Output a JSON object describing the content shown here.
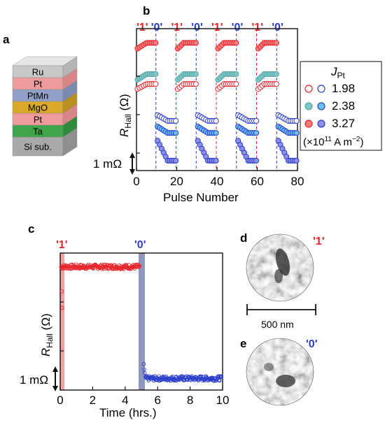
{
  "panels": {
    "a": {
      "label": "a",
      "stack": [
        {
          "name": "Ru",
          "top": "#e6e6e6",
          "front": "#c8c8c8",
          "side": "#b5b5b5"
        },
        {
          "name": "Pt",
          "top": "#f6b5b5",
          "front": "#f09b9b",
          "side": "#d98585"
        },
        {
          "name": "PtMn",
          "top": "#a9b7d6",
          "front": "#90a0c6",
          "side": "#7a8ab0"
        },
        {
          "name": "MgO",
          "top": "#e6c04a",
          "front": "#d9a92a",
          "side": "#b98f20"
        },
        {
          "name": "Pt",
          "top": "#f6b5b5",
          "front": "#f09b9b",
          "side": "#d98585"
        },
        {
          "name": "Ta",
          "top": "#5cbd5c",
          "front": "#3fa54a",
          "side": "#2f8a3a"
        },
        {
          "name": "Si sub.",
          "top": "#c4c4c4",
          "front": "#a9a9a9",
          "side": "#8f8f8f"
        }
      ]
    },
    "b": {
      "label": "b",
      "ylabel_main": "R",
      "ylabel_sub": "Hall",
      "ylabel_unit": " (Ω)",
      "xlabel": "Pulse Number",
      "scalebar": "1 mΩ",
      "states_top": [
        "'1'",
        "'0'",
        "'1'",
        "'0'",
        "'1'",
        "'0'",
        "'1'",
        "'0'"
      ],
      "legend": {
        "title_main": "J",
        "title_sub": "Pt",
        "entries": [
          "1.98",
          "2.38",
          "3.27"
        ],
        "units": "(×10",
        "units_exp": "11",
        "units_tail": " A m",
        "units_exp2": "−2",
        "units_close": ")"
      }
    },
    "c": {
      "label": "c",
      "ylabel_main": "R",
      "ylabel_sub": "Hall",
      "ylabel_unit": " (Ω)",
      "xlabel": "Time (hrs.)",
      "scalebar": "1 mΩ",
      "state_1": "'1'",
      "state_0": "'0'"
    },
    "d": {
      "label": "d",
      "state": "'1'"
    },
    "scalebar_500": "500 nm",
    "e": {
      "label": "e",
      "state": "'0'"
    }
  },
  "chart_data": [
    {
      "type": "scatter",
      "panel": "b",
      "xlabel": "Pulse Number",
      "ylabel": "R_Hall (Ω)",
      "xlim": [
        0,
        80
      ],
      "xticks": [
        0,
        20,
        40,
        60,
        80
      ],
      "ylim": [
        0,
        10
      ],
      "pulses_per_segment": 10,
      "segment_starts": [
        0,
        10,
        20,
        30,
        40,
        50,
        60,
        70
      ],
      "segment_states": [
        "1",
        "0",
        "1",
        "0",
        "1",
        "0",
        "1",
        "0"
      ],
      "scalebar_mOhm": 1,
      "series": [
        {
          "name": "1.98",
          "color_edge": "#e8242b",
          "color_edge0": "#2a3ecb",
          "fill": "#ffffff",
          "high": 6.1,
          "low_start": 3.9,
          "low_end": 3.5,
          "high_start": 5.75
        },
        {
          "name": "2.38",
          "color_edge": "#5aa6a6",
          "color_edge0": "#2a3ecb",
          "fill1": "#7fc8c8",
          "fill0": "#6cc0ee",
          "high": 6.8,
          "low_start": 3.1,
          "low_end": 2.65,
          "high_start": 6.4
        },
        {
          "name": "3.27",
          "color_edge": "#e8242b",
          "color_edge0": "#2a3ecb",
          "fill1": "#f08080",
          "fill0": "#8f8fe8",
          "high": 9.0,
          "low_start": 2.1,
          "low_end": 0.7,
          "high_start": 8.6
        }
      ]
    },
    {
      "type": "scatter",
      "panel": "c",
      "xlabel": "Time (hrs.)",
      "ylabel": "R_Hall (Ω)",
      "xlim": [
        0,
        10
      ],
      "xticks": [
        0,
        2,
        4,
        6,
        8,
        10
      ],
      "ylim": [
        0,
        10
      ],
      "switch_to_1_time": 0,
      "switch_to_0_time": 5,
      "level_1": 9.0,
      "level_0": 0.85,
      "scalebar_mOhm": 1
    }
  ]
}
